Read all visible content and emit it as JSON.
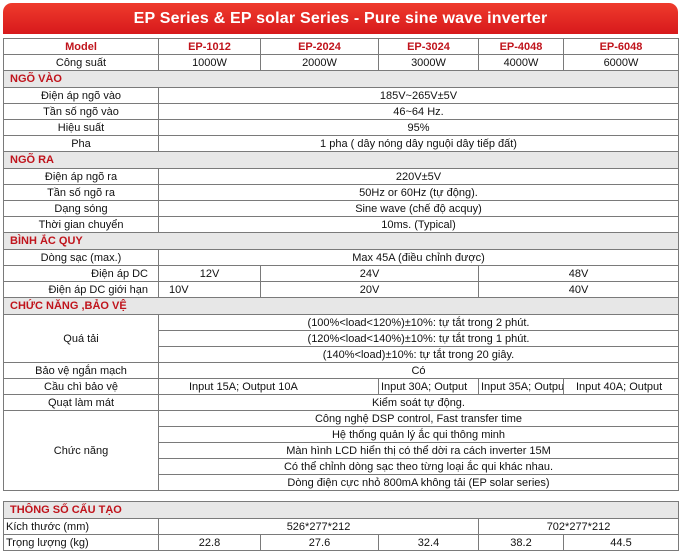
{
  "title": "EP Series & EP solar Series - Pure sine wave inverter",
  "header": {
    "label": "Model",
    "models": [
      "EP-1012",
      "EP-2024",
      "EP-3024",
      "EP-4048",
      "EP-6048"
    ]
  },
  "capacity": {
    "label": "Công suất",
    "values": [
      "1000W",
      "2000W",
      "3000W",
      "4000W",
      "6000W"
    ]
  },
  "sections": {
    "input": "NGÕ VÀO",
    "output": "NGÕ RA",
    "battery": "BÌNH ẮC QUY",
    "functions": "CHỨC NĂNG ,BẢO VỆ",
    "structure": "THÔNG SỐ CẤU TẠO"
  },
  "input": {
    "voltage": {
      "label": "Điện áp ngõ vào",
      "value": "185V~265V±5V"
    },
    "frequency": {
      "label": "Tần số ngõ vào",
      "value": "46~64 Hz."
    },
    "efficiency": {
      "label": "Hiệu suất",
      "value": "95%"
    },
    "phase": {
      "label": "Pha",
      "value": "1 pha ( dây nóng dây nguội dây tiếp đất)"
    }
  },
  "output": {
    "voltage": {
      "label": "Điện áp ngõ ra",
      "value": "220V±5V"
    },
    "frequency": {
      "label": "Tần số ngõ ra",
      "value": "50Hz or 60Hz (tự động)."
    },
    "waveform": {
      "label": "Dạng sóng",
      "value": "Sine wave (chế độ acquy)"
    },
    "transfer": {
      "label": "Thời gian chuyển",
      "value": "10ms. (Typical)"
    }
  },
  "battery": {
    "charge": {
      "label": "Dòng sạc (max.)",
      "value": "Max 45A (điều chỉnh được)"
    },
    "dc_voltage": {
      "label": "Điện áp DC",
      "values": [
        "12V",
        "24V",
        "48V"
      ]
    },
    "dc_limit": {
      "label": "Điện áp DC giới hạn",
      "values": [
        "10V",
        "20V",
        "40V"
      ]
    }
  },
  "functions": {
    "overload": {
      "label": "Quá tải",
      "lines": [
        "(100%<load<120%)±10%: tự tắt trong 2 phút.",
        "(120%<load<140%)±10%:  tự tắt trong 1 phút.",
        "(140%<load)±10%:  tự tắt trong 20 giây."
      ]
    },
    "short": {
      "label": "Bảo vệ ngắn mạch",
      "value": "Có"
    },
    "fuse": {
      "label": "Cầu chì bảo vệ",
      "values": [
        "Input 15A; Output 10A",
        "Input 30A; Output",
        "Input 35A; Output",
        "Input 40A; Output"
      ]
    },
    "fan": {
      "label": "Quạt làm mát",
      "value": "Kiểm soát tự động."
    },
    "features": {
      "label": "Chức năng",
      "lines": [
        "Công nghệ DSP control, Fast transfer time",
        "Hệ thống quản lý ắc qui thông minh",
        "Màn hình LCD hiển thị có thể dời ra cách inverter 15M",
        "Có thể chỉnh dòng sạc theo từng loại ắc qui khác nhau.",
        "Dòng điện cực nhỏ 800mA không tải (EP solar series)"
      ]
    }
  },
  "structure": {
    "size": {
      "label": "Kích thước  (mm)",
      "values": [
        "526*277*212",
        "702*277*212"
      ]
    },
    "weight": {
      "label": "Trọng lượng (kg)",
      "values": [
        "22.8",
        "27.6",
        "32.4",
        "38.2",
        "44.5"
      ]
    }
  },
  "colors": {
    "accent": "#d7191c",
    "section_bg": "#e7e7e7",
    "border": "#7a7a7a"
  }
}
